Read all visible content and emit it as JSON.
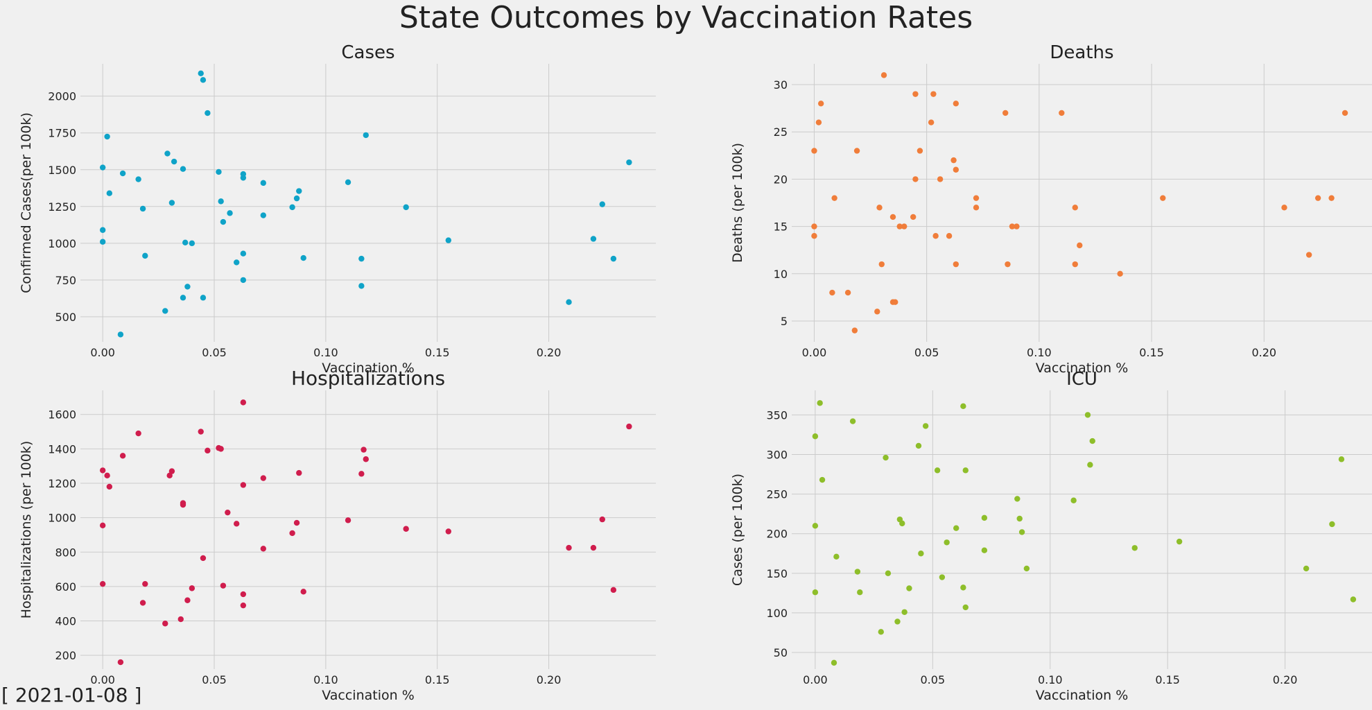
{
  "figure": {
    "suptitle": "State Outcomes by Vaccination Rates",
    "date_label": "[ 2021-01-08 ]",
    "background": "#f0f0f0",
    "grid_color": "#cbcbcb"
  },
  "chart_data": [
    {
      "type": "scatter",
      "title": "Cases",
      "xlabel": "Vaccination %",
      "ylabel": "Confirmed Cases(per 100k)",
      "color": "#0fa3c8",
      "xlim": [
        -0.01,
        0.248
      ],
      "ylim": [
        330,
        2220
      ],
      "xticks": [
        0.0,
        0.05,
        0.1,
        0.15,
        0.2
      ],
      "xtick_labels": [
        "0.00",
        "0.05",
        "0.10",
        "0.15",
        "0.20"
      ],
      "yticks": [
        500,
        750,
        1000,
        1250,
        1500,
        1750,
        2000
      ],
      "ytick_labels": [
        "500",
        "750",
        "1000",
        "1250",
        "1500",
        "1750",
        "2000"
      ],
      "grid": true,
      "points": [
        [
          0.0,
          1515
        ],
        [
          0.0,
          1090
        ],
        [
          0.0,
          1010
        ],
        [
          0.002,
          1725
        ],
        [
          0.003,
          1340
        ],
        [
          0.008,
          380
        ],
        [
          0.009,
          1475
        ],
        [
          0.016,
          1435
        ],
        [
          0.018,
          1235
        ],
        [
          0.019,
          915
        ],
        [
          0.028,
          540
        ],
        [
          0.029,
          1610
        ],
        [
          0.031,
          1275
        ],
        [
          0.032,
          1555
        ],
        [
          0.036,
          1505
        ],
        [
          0.036,
          630
        ],
        [
          0.037,
          1005
        ],
        [
          0.038,
          705
        ],
        [
          0.04,
          1000
        ],
        [
          0.044,
          2155
        ],
        [
          0.045,
          2110
        ],
        [
          0.045,
          630
        ],
        [
          0.047,
          1885
        ],
        [
          0.052,
          1485
        ],
        [
          0.053,
          1285
        ],
        [
          0.054,
          1145
        ],
        [
          0.057,
          1205
        ],
        [
          0.06,
          870
        ],
        [
          0.063,
          1470
        ],
        [
          0.063,
          1445
        ],
        [
          0.063,
          930
        ],
        [
          0.063,
          750
        ],
        [
          0.072,
          1410
        ],
        [
          0.072,
          1190
        ],
        [
          0.085,
          1245
        ],
        [
          0.087,
          1305
        ],
        [
          0.088,
          1355
        ],
        [
          0.09,
          900
        ],
        [
          0.11,
          1415
        ],
        [
          0.116,
          895
        ],
        [
          0.116,
          710
        ],
        [
          0.118,
          1735
        ],
        [
          0.136,
          1245
        ],
        [
          0.155,
          1020
        ],
        [
          0.209,
          600
        ],
        [
          0.22,
          1030
        ],
        [
          0.224,
          1265
        ],
        [
          0.229,
          895
        ],
        [
          0.236,
          1550
        ]
      ]
    },
    {
      "type": "scatter",
      "title": "Deaths",
      "xlabel": "Vaccination %",
      "ylabel": "Deaths (per 100k)",
      "color": "#f07d3a",
      "xlim": [
        -0.01,
        0.248
      ],
      "ylim": [
        2.8,
        32.2
      ],
      "xticks": [
        0.0,
        0.05,
        0.1,
        0.15,
        0.2
      ],
      "xtick_labels": [
        "0.00",
        "0.05",
        "0.10",
        "0.15",
        "0.20"
      ],
      "yticks": [
        5,
        10,
        15,
        20,
        25,
        30
      ],
      "ytick_labels": [
        "5",
        "10",
        "15",
        "20",
        "25",
        "30"
      ],
      "grid": true,
      "points": [
        [
          0.0,
          23
        ],
        [
          0.0,
          15
        ],
        [
          0.0,
          14
        ],
        [
          0.002,
          26
        ],
        [
          0.003,
          28
        ],
        [
          0.008,
          8
        ],
        [
          0.009,
          18
        ],
        [
          0.015,
          8
        ],
        [
          0.018,
          4
        ],
        [
          0.019,
          23
        ],
        [
          0.028,
          6
        ],
        [
          0.029,
          17
        ],
        [
          0.03,
          11
        ],
        [
          0.031,
          31
        ],
        [
          0.035,
          16
        ],
        [
          0.035,
          7
        ],
        [
          0.036,
          7
        ],
        [
          0.038,
          15
        ],
        [
          0.04,
          15
        ],
        [
          0.044,
          16
        ],
        [
          0.045,
          29
        ],
        [
          0.045,
          20
        ],
        [
          0.047,
          23
        ],
        [
          0.052,
          26
        ],
        [
          0.053,
          29
        ],
        [
          0.054,
          14
        ],
        [
          0.056,
          20
        ],
        [
          0.06,
          14
        ],
        [
          0.062,
          22
        ],
        [
          0.063,
          28
        ],
        [
          0.063,
          21
        ],
        [
          0.063,
          11
        ],
        [
          0.072,
          18
        ],
        [
          0.072,
          17
        ],
        [
          0.085,
          27
        ],
        [
          0.086,
          11
        ],
        [
          0.088,
          15
        ],
        [
          0.09,
          15
        ],
        [
          0.11,
          27
        ],
        [
          0.116,
          17
        ],
        [
          0.116,
          11
        ],
        [
          0.118,
          13
        ],
        [
          0.136,
          10
        ],
        [
          0.155,
          18
        ],
        [
          0.209,
          17
        ],
        [
          0.22,
          12
        ],
        [
          0.224,
          18
        ],
        [
          0.23,
          18
        ],
        [
          0.236,
          27
        ]
      ]
    },
    {
      "type": "scatter",
      "title": "Hospitalizations",
      "xlabel": "Vaccination %",
      "ylabel": "Hospitalizations (per 100k)",
      "color": "#d01d4d",
      "xlim": [
        -0.01,
        0.248
      ],
      "ylim": [
        120,
        1740
      ],
      "xticks": [
        0.0,
        0.05,
        0.1,
        0.15,
        0.2
      ],
      "xtick_labels": [
        "0.00",
        "0.05",
        "0.10",
        "0.15",
        "0.20"
      ],
      "yticks": [
        200,
        400,
        600,
        800,
        1000,
        1200,
        1400,
        1600
      ],
      "ytick_labels": [
        "200",
        "400",
        "600",
        "800",
        "1000",
        "1200",
        "1400",
        "1600"
      ],
      "grid": true,
      "points": [
        [
          0.0,
          1275
        ],
        [
          0.0,
          955
        ],
        [
          0.0,
          615
        ],
        [
          0.002,
          1245
        ],
        [
          0.003,
          1180
        ],
        [
          0.008,
          160
        ],
        [
          0.009,
          1360
        ],
        [
          0.016,
          1490
        ],
        [
          0.018,
          505
        ],
        [
          0.019,
          615
        ],
        [
          0.028,
          385
        ],
        [
          0.03,
          1245
        ],
        [
          0.031,
          1270
        ],
        [
          0.035,
          410
        ],
        [
          0.036,
          1085
        ],
        [
          0.036,
          1075
        ],
        [
          0.038,
          520
        ],
        [
          0.04,
          590
        ],
        [
          0.044,
          1500
        ],
        [
          0.045,
          765
        ],
        [
          0.047,
          1390
        ],
        [
          0.052,
          1405
        ],
        [
          0.053,
          1400
        ],
        [
          0.054,
          605
        ],
        [
          0.056,
          1030
        ],
        [
          0.06,
          965
        ],
        [
          0.063,
          1670
        ],
        [
          0.063,
          1190
        ],
        [
          0.063,
          555
        ],
        [
          0.063,
          490
        ],
        [
          0.072,
          1230
        ],
        [
          0.072,
          820
        ],
        [
          0.085,
          910
        ],
        [
          0.087,
          970
        ],
        [
          0.088,
          1260
        ],
        [
          0.09,
          570
        ],
        [
          0.11,
          985
        ],
        [
          0.116,
          1255
        ],
        [
          0.117,
          1395
        ],
        [
          0.118,
          1340
        ],
        [
          0.136,
          935
        ],
        [
          0.155,
          920
        ],
        [
          0.209,
          825
        ],
        [
          0.22,
          825
        ],
        [
          0.224,
          990
        ],
        [
          0.229,
          580
        ],
        [
          0.236,
          1530
        ]
      ]
    },
    {
      "type": "scatter",
      "title": "ICU",
      "xlabel": "Vaccination %",
      "ylabel": "Cases (per 100k)",
      "color": "#8ebe2a",
      "xlim": [
        -0.01,
        0.237
      ],
      "ylim": [
        29,
        381
      ],
      "xticks": [
        0.0,
        0.05,
        0.1,
        0.15,
        0.2
      ],
      "xtick_labels": [
        "0.00",
        "0.05",
        "0.10",
        "0.15",
        "0.20"
      ],
      "yticks": [
        50,
        100,
        150,
        200,
        250,
        300,
        350
      ],
      "ytick_labels": [
        "50",
        "100",
        "150",
        "200",
        "250",
        "300",
        "350"
      ],
      "grid": true,
      "points": [
        [
          0.0,
          323
        ],
        [
          0.0,
          210
        ],
        [
          0.0,
          126
        ],
        [
          0.002,
          365
        ],
        [
          0.003,
          268
        ],
        [
          0.008,
          37
        ],
        [
          0.009,
          171
        ],
        [
          0.016,
          342
        ],
        [
          0.018,
          152
        ],
        [
          0.019,
          126
        ],
        [
          0.028,
          76
        ],
        [
          0.03,
          296
        ],
        [
          0.031,
          150
        ],
        [
          0.035,
          89
        ],
        [
          0.036,
          218
        ],
        [
          0.037,
          213
        ],
        [
          0.038,
          101
        ],
        [
          0.04,
          131
        ],
        [
          0.044,
          311
        ],
        [
          0.045,
          175
        ],
        [
          0.047,
          336
        ],
        [
          0.052,
          280
        ],
        [
          0.054,
          145
        ],
        [
          0.056,
          189
        ],
        [
          0.06,
          207
        ],
        [
          0.063,
          361
        ],
        [
          0.064,
          280
        ],
        [
          0.063,
          132
        ],
        [
          0.064,
          107
        ],
        [
          0.072,
          220
        ],
        [
          0.072,
          179
        ],
        [
          0.086,
          244
        ],
        [
          0.087,
          219
        ],
        [
          0.088,
          202
        ],
        [
          0.09,
          156
        ],
        [
          0.11,
          242
        ],
        [
          0.116,
          350
        ],
        [
          0.117,
          287
        ],
        [
          0.118,
          317
        ],
        [
          0.136,
          182
        ],
        [
          0.155,
          190
        ],
        [
          0.209,
          156
        ],
        [
          0.22,
          212
        ],
        [
          0.224,
          294
        ],
        [
          0.229,
          117
        ]
      ]
    }
  ]
}
